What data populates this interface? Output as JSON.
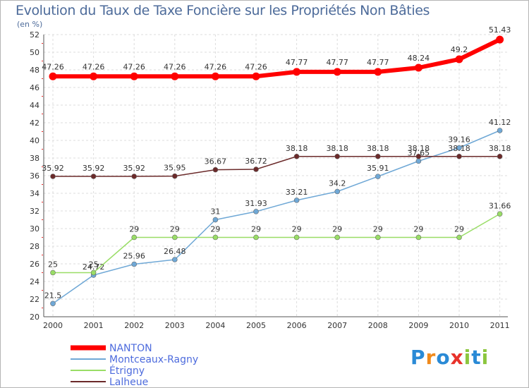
{
  "chart_data": {
    "type": "line",
    "title": "Evolution du Taux de Taxe Foncière sur les Propriétés Non Bâties",
    "ylabel": "(en %)",
    "xlabel": "",
    "x": [
      "2000",
      "2001",
      "2002",
      "2003",
      "2004",
      "2005",
      "2006",
      "2007",
      "2008",
      "2009",
      "2010",
      "2011"
    ],
    "ylim": [
      20,
      52
    ],
    "yticks": [
      "20",
      "22",
      "24",
      "26",
      "28",
      "30",
      "32",
      "34",
      "36",
      "38",
      "40",
      "42",
      "44",
      "46",
      "48",
      "50",
      "52"
    ],
    "grid": true,
    "legend_position": "bottom-left",
    "series": [
      {
        "name": "NANTON",
        "color": "#ff0000",
        "values": [
          47.26,
          47.26,
          47.26,
          47.26,
          47.26,
          47.26,
          47.77,
          47.77,
          47.77,
          48.24,
          49.2,
          51.43
        ],
        "labels": [
          "47.26",
          "47.26",
          "47.26",
          "47.26",
          "47.26",
          "47.26",
          "47.77",
          "47.77",
          "47.77",
          "48.24",
          "49.2",
          "51.43"
        ]
      },
      {
        "name": "Montceaux-Ragny",
        "color": "#6fa8d6",
        "values": [
          21.5,
          24.72,
          25.96,
          26.48,
          31,
          31.93,
          33.21,
          34.2,
          35.91,
          37.65,
          39.16,
          41.12
        ],
        "labels": [
          "21.5",
          "24.72",
          "25.96",
          "26.48",
          "31",
          "31.93",
          "33.21",
          "34.2",
          "35.91",
          "37.65",
          "39.16",
          "41.12"
        ]
      },
      {
        "name": "Étrigny",
        "color": "#99dd66",
        "values": [
          25,
          25,
          29,
          29,
          29,
          29,
          29,
          29,
          29,
          29,
          29,
          31.66
        ],
        "labels": [
          "25",
          "25",
          "29",
          "29",
          "29",
          "29",
          "29",
          "29",
          "29",
          "29",
          "29",
          "31.66"
        ]
      },
      {
        "name": "Lalheue",
        "color": "#6b2a2a",
        "values": [
          35.92,
          35.92,
          35.92,
          35.95,
          36.67,
          36.72,
          38.18,
          38.18,
          38.18,
          38.18,
          38.18,
          38.18
        ],
        "labels": [
          "35.92",
          "35.92",
          "35.92",
          "35.95",
          "36.67",
          "36.72",
          "38.18",
          "38.18",
          "38.18",
          "38.18",
          "38.18",
          "38.18"
        ]
      }
    ]
  },
  "logo": {
    "text": "Proxiti",
    "letters": [
      "P",
      "r",
      "o",
      "x",
      "i",
      "t",
      "i"
    ]
  }
}
